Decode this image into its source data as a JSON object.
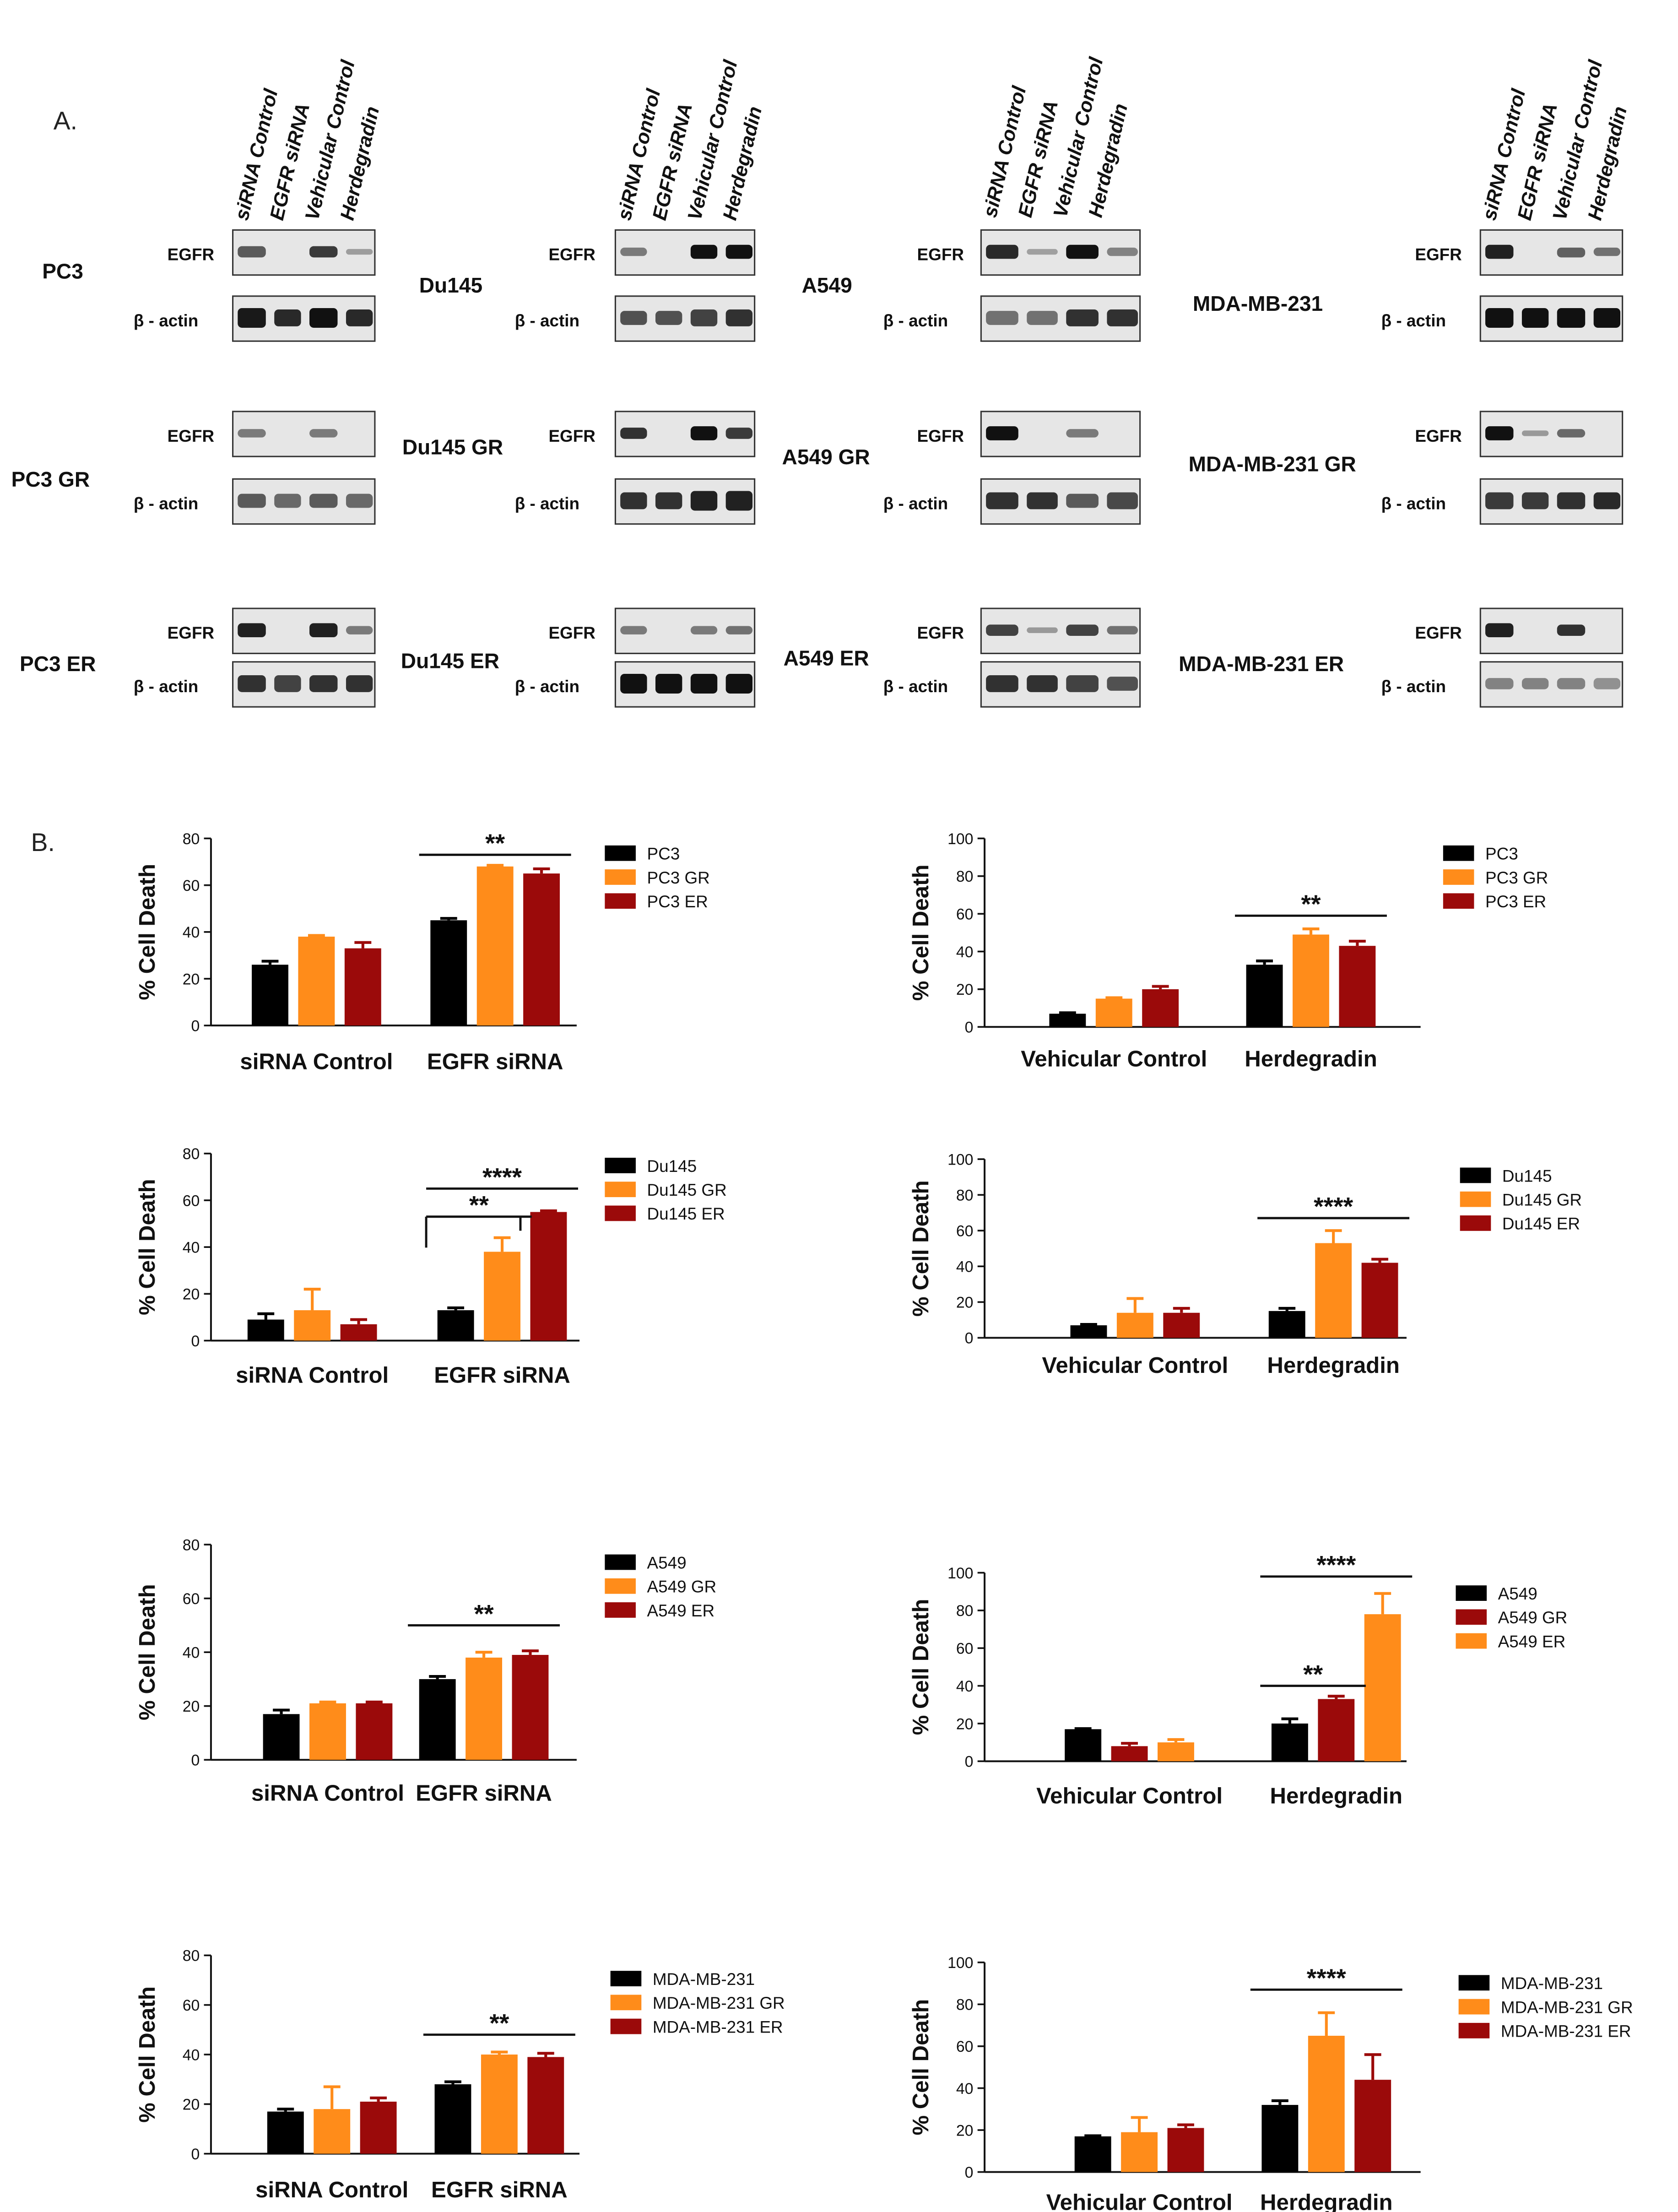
{
  "panel_a": {
    "label": "A.",
    "lane_headers": [
      "siRNA Control",
      "EGFR siRNA",
      "Vehicular Control",
      "Herdegradin"
    ],
    "egfr_label": "EGFR",
    "actin_label": "β - actin",
    "blots": [
      {
        "cell_line": "PC3",
        "egfr": [
          0.55,
          0.0,
          0.75,
          0.12
        ],
        "actin": [
          0.95,
          0.85,
          1.0,
          0.85
        ]
      },
      {
        "cell_line": "Du145",
        "egfr": [
          0.35,
          0.0,
          1.0,
          1.0
        ],
        "actin": [
          0.6,
          0.6,
          0.7,
          0.8
        ]
      },
      {
        "cell_line": "A549",
        "egfr": [
          0.85,
          0.1,
          1.0,
          0.3
        ],
        "actin": [
          0.4,
          0.4,
          0.8,
          0.8
        ]
      },
      {
        "cell_line": "MDA-MB-231",
        "egfr": [
          0.9,
          0.0,
          0.5,
          0.4
        ],
        "actin": [
          1.0,
          1.0,
          1.0,
          1.0
        ]
      },
      {
        "cell_line": "PC3 GR",
        "egfr": [
          0.35,
          0.0,
          0.35,
          0.0
        ],
        "actin": [
          0.55,
          0.45,
          0.55,
          0.45
        ]
      },
      {
        "cell_line": "Du145 GR",
        "egfr": [
          0.8,
          0.0,
          1.0,
          0.75
        ],
        "actin": [
          0.8,
          0.8,
          0.9,
          0.9
        ]
      },
      {
        "cell_line": "A549 GR",
        "egfr": [
          1.0,
          0.0,
          0.35,
          0.0
        ],
        "actin": [
          0.8,
          0.8,
          0.55,
          0.65
        ]
      },
      {
        "cell_line": "MDA-MB-231 GR",
        "egfr": [
          1.0,
          0.15,
          0.45,
          0.0
        ],
        "actin": [
          0.75,
          0.75,
          0.8,
          0.85
        ]
      },
      {
        "cell_line": "PC3 ER",
        "egfr": [
          0.9,
          0.0,
          0.9,
          0.35
        ],
        "actin": [
          0.8,
          0.7,
          0.8,
          0.8
        ]
      },
      {
        "cell_line": "Du145  ER",
        "egfr": [
          0.35,
          0.0,
          0.35,
          0.4
        ],
        "actin": [
          1.0,
          1.0,
          1.0,
          1.0
        ]
      },
      {
        "cell_line": "A549 ER",
        "egfr": [
          0.7,
          0.15,
          0.7,
          0.4
        ],
        "actin": [
          0.8,
          0.8,
          0.7,
          0.6
        ]
      },
      {
        "cell_line": "MDA-MB-231 ER",
        "egfr": [
          0.9,
          0.0,
          0.8,
          0.0
        ],
        "actin": [
          0.3,
          0.3,
          0.3,
          0.2
        ]
      }
    ]
  },
  "panel_b": {
    "label": "B."
  },
  "colors": {
    "black": "#000000",
    "orange": "#FF8C1A",
    "red": "#9B0A0A",
    "axis": "#111111",
    "blot_bg": "#e6e6e6",
    "band": "#111111"
  },
  "chart_data": [
    {
      "type": "bar",
      "categories": [
        "siRNA Control",
        "EGFR siRNA"
      ],
      "series": [
        {
          "name": "PC3",
          "color": "#000000",
          "values": [
            26,
            45
          ],
          "errors": [
            1.5,
            0.8
          ]
        },
        {
          "name": "PC3 GR",
          "color": "#FF8C1A",
          "values": [
            38,
            68
          ],
          "errors": [
            0.5,
            0.5
          ]
        },
        {
          "name": "PC3 ER",
          "color": "#9B0A0A",
          "values": [
            33,
            65
          ],
          "errors": [
            2.5,
            2
          ]
        }
      ],
      "ylabel": "% Cell Death",
      "ylim": [
        0,
        80
      ],
      "yticks": [
        0,
        20,
        40,
        60,
        80
      ],
      "significance": [
        {
          "text": "**",
          "from_group": 1,
          "from_bar": 0,
          "to_group": 1,
          "to_bar": 2,
          "y": 73
        }
      ]
    },
    {
      "type": "bar",
      "categories": [
        "Vehicular Control",
        "Herdegradin"
      ],
      "series": [
        {
          "name": "PC3",
          "color": "#000000",
          "values": [
            7,
            33
          ],
          "errors": [
            0.5,
            2
          ]
        },
        {
          "name": "PC3 GR",
          "color": "#FF8C1A",
          "values": [
            15,
            49
          ],
          "errors": [
            0.5,
            3
          ]
        },
        {
          "name": "PC3 ER",
          "color": "#9B0A0A",
          "values": [
            20,
            43
          ],
          "errors": [
            1.5,
            2.5
          ]
        }
      ],
      "ylabel": "% Cell Death",
      "ylim": [
        0,
        100
      ],
      "yticks": [
        0,
        20,
        40,
        60,
        80,
        100
      ],
      "significance": [
        {
          "text": "**",
          "from_group": 1,
          "from_bar": 0,
          "to_group": 1,
          "to_bar": 2,
          "y": 59
        }
      ]
    },
    {
      "type": "bar",
      "categories": [
        "siRNA Control",
        "EGFR siRNA"
      ],
      "series": [
        {
          "name": "Du145",
          "color": "#000000",
          "values": [
            9,
            13
          ],
          "errors": [
            2.5,
            1
          ]
        },
        {
          "name": "Du145 GR",
          "color": "#FF8C1A",
          "values": [
            13,
            38
          ],
          "errors": [
            9,
            6
          ]
        },
        {
          "name": "Du145 ER",
          "color": "#9B0A0A",
          "values": [
            7,
            55
          ],
          "errors": [
            2,
            0.5
          ]
        }
      ],
      "ylabel": "% Cell Death",
      "ylim": [
        0,
        80
      ],
      "yticks": [
        0,
        20,
        40,
        60,
        80
      ],
      "significance": [
        {
          "text": "****",
          "from_group": 1,
          "from_bar": 0,
          "to_group": 1,
          "to_bar": 2,
          "y": 65
        },
        {
          "text": "**",
          "from_group": 1,
          "from_bar": 0,
          "to_group": 1,
          "to_bar": 1,
          "y": 53,
          "drop": true
        }
      ]
    },
    {
      "type": "bar",
      "categories": [
        "Vehicular Control",
        "Herdegradin"
      ],
      "series": [
        {
          "name": "Du145",
          "color": "#000000",
          "values": [
            7,
            15
          ],
          "errors": [
            0.5,
            1.5
          ]
        },
        {
          "name": "Du145 GR",
          "color": "#FF8C1A",
          "values": [
            14,
            53
          ],
          "errors": [
            8,
            7
          ]
        },
        {
          "name": "Du145 ER",
          "color": "#9B0A0A",
          "values": [
            14,
            42
          ],
          "errors": [
            2.5,
            2
          ]
        }
      ],
      "ylabel": "% Cell Death",
      "ylim": [
        0,
        100
      ],
      "yticks": [
        0,
        20,
        40,
        60,
        80,
        100
      ],
      "significance": [
        {
          "text": "****",
          "from_group": 1,
          "from_bar": 0,
          "to_group": 1,
          "to_bar": 2,
          "y": 67
        }
      ]
    },
    {
      "type": "bar",
      "categories": [
        "siRNA Control",
        "EGFR siRNA"
      ],
      "series": [
        {
          "name": "A549",
          "color": "#000000",
          "values": [
            17,
            30
          ],
          "errors": [
            1.5,
            1
          ]
        },
        {
          "name": "A549 GR",
          "color": "#FF8C1A",
          "values": [
            21,
            38
          ],
          "errors": [
            0.5,
            2
          ]
        },
        {
          "name": "A549 ER",
          "color": "#9B0A0A",
          "values": [
            21,
            39
          ],
          "errors": [
            0.5,
            1.5
          ]
        }
      ],
      "ylabel": "% Cell Death",
      "ylim": [
        0,
        80
      ],
      "yticks": [
        0,
        20,
        40,
        60,
        80
      ],
      "significance": [
        {
          "text": "**",
          "from_group": 1,
          "from_bar": 0,
          "to_group": 1,
          "to_bar": 2,
          "y": 50
        }
      ]
    },
    {
      "type": "bar",
      "categories": [
        "Vehicular Control",
        "Herdegradin"
      ],
      "series": [
        {
          "name": "A549",
          "color": "#000000",
          "values": [
            17,
            20
          ],
          "errors": [
            0.3,
            2.5
          ]
        },
        {
          "name": "A549 GR",
          "color": "#9B0A0A",
          "values": [
            8,
            33
          ],
          "errors": [
            1.5,
            1.5
          ]
        },
        {
          "name": "A549 ER",
          "color": "#FF8C1A",
          "values": [
            10,
            78
          ],
          "errors": [
            1.5,
            11
          ]
        }
      ],
      "ylabel": "% Cell Death",
      "ylim": [
        0,
        100
      ],
      "yticks": [
        0,
        20,
        40,
        60,
        80,
        100
      ],
      "significance": [
        {
          "text": "****",
          "from_group": 1,
          "from_bar": 0,
          "to_group": 1,
          "to_bar": 2,
          "y": 98
        },
        {
          "text": "**",
          "from_group": 1,
          "from_bar": 0,
          "to_group": 1,
          "to_bar": 1,
          "y": 40
        }
      ]
    },
    {
      "type": "bar",
      "categories": [
        "siRNA Control",
        "EGFR siRNA"
      ],
      "series": [
        {
          "name": "MDA-MB-231",
          "color": "#000000",
          "values": [
            17,
            28
          ],
          "errors": [
            1,
            1
          ]
        },
        {
          "name": "MDA-MB-231 GR",
          "color": "#FF8C1A",
          "values": [
            18,
            40
          ],
          "errors": [
            9,
            1
          ]
        },
        {
          "name": "MDA-MB-231 ER",
          "color": "#9B0A0A",
          "values": [
            21,
            39
          ],
          "errors": [
            1.5,
            1.5
          ]
        }
      ],
      "ylabel": "% Cell Death",
      "ylim": [
        0,
        80
      ],
      "yticks": [
        0,
        20,
        40,
        60,
        80
      ],
      "significance": [
        {
          "text": "**",
          "from_group": 1,
          "from_bar": 0,
          "to_group": 1,
          "to_bar": 2,
          "y": 48
        }
      ]
    },
    {
      "type": "bar",
      "categories": [
        "Vehicular Control",
        "Herdegradin"
      ],
      "series": [
        {
          "name": "MDA-MB-231",
          "color": "#000000",
          "values": [
            17,
            32
          ],
          "errors": [
            0.3,
            2
          ]
        },
        {
          "name": "MDA-MB-231 GR",
          "color": "#FF8C1A",
          "values": [
            19,
            65
          ],
          "errors": [
            7,
            11
          ]
        },
        {
          "name": "MDA-MB-231 ER",
          "color": "#9B0A0A",
          "values": [
            21,
            44
          ],
          "errors": [
            1.5,
            12
          ]
        }
      ],
      "ylabel": "% Cell Death",
      "ylim": [
        0,
        100
      ],
      "yticks": [
        0,
        20,
        40,
        60,
        80,
        100
      ],
      "significance": [
        {
          "text": "****",
          "from_group": 1,
          "from_bar": 0,
          "to_group": 1,
          "to_bar": 2,
          "y": 87
        }
      ]
    }
  ]
}
